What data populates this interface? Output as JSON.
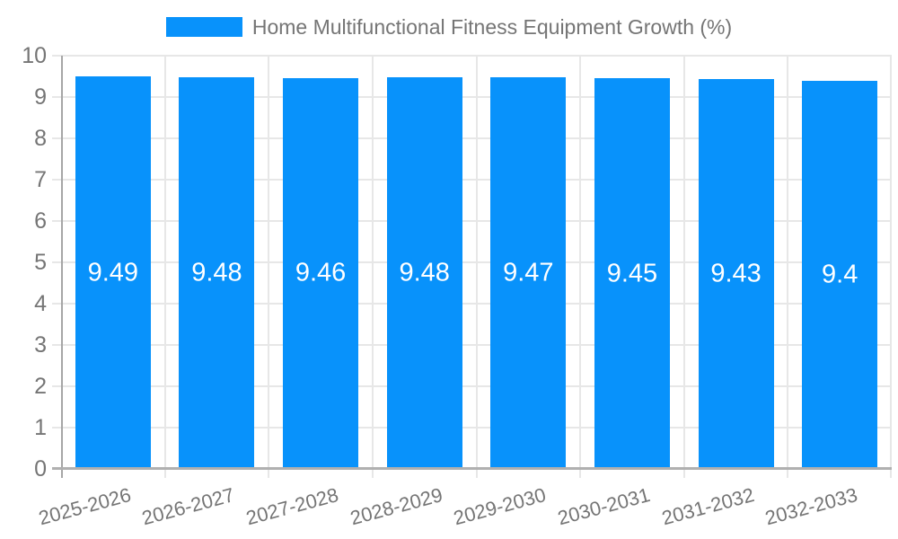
{
  "chart_data": {
    "type": "bar",
    "title": "Home Multifunctional Fitness Equipment Growth (%)",
    "categories": [
      "2025-2026",
      "2026-2027",
      "2027-2028",
      "2028-2029",
      "2029-2030",
      "2030-2031",
      "2031-2032",
      "2032-2033"
    ],
    "series": [
      {
        "name": "Home Multifunctional Fitness Equipment Growth (%)",
        "values": [
          9.49,
          9.48,
          9.46,
          9.48,
          9.47,
          9.45,
          9.43,
          9.4
        ]
      }
    ],
    "value_labels": [
      "9.49",
      "9.48",
      "9.46",
      "9.48",
      "9.47",
      "9.45",
      "9.43",
      "9.4"
    ],
    "y_tick_labels": [
      "0",
      "1",
      "2",
      "3",
      "4",
      "5",
      "6",
      "7",
      "8",
      "9",
      "10"
    ],
    "xlabel": "",
    "ylabel": "",
    "ylim": [
      0,
      10
    ],
    "ytick_step": 1,
    "grid": true,
    "legend_position": "top",
    "x_label_rotation_deg": -15,
    "colors": {
      "bar": "#0892fb",
      "grid": "#e7e7e7",
      "baseline": "#b0b0b0",
      "y_axis": "#a6a6a6",
      "label_text": "#757575",
      "value_text": "#ffffff",
      "background": "#ffffff"
    }
  }
}
